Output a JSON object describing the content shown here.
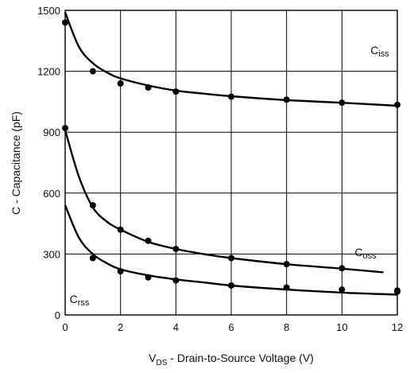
{
  "chart_data": {
    "type": "scatter",
    "title": "",
    "xlabel": {
      "prefix": "V",
      "sub": "DS",
      "rest": " - Drain-to-Source Voltage (V)"
    },
    "ylabel": "C - Capacitance (pF)",
    "xlim": [
      0,
      12
    ],
    "ylim": [
      0,
      1500
    ],
    "xticks": [
      0,
      2,
      4,
      6,
      8,
      10,
      12
    ],
    "yticks": [
      0,
      300,
      600,
      900,
      1200,
      1500
    ],
    "grid": true,
    "legend": "none",
    "series": [
      {
        "label": {
          "main": "C",
          "sub": "iss"
        },
        "points_x": [
          0,
          1,
          2,
          3,
          4,
          6,
          8,
          10,
          12
        ],
        "points_y": [
          1440,
          1200,
          1140,
          1120,
          1100,
          1075,
          1060,
          1045,
          1035
        ],
        "curve_x": [
          0,
          0.5,
          1,
          1.5,
          2,
          3,
          4,
          5,
          6,
          8,
          10,
          12
        ],
        "curve_y": [
          1490,
          1320,
          1240,
          1195,
          1165,
          1130,
          1105,
          1090,
          1077,
          1058,
          1045,
          1030
        ]
      },
      {
        "label": {
          "main": "C",
          "sub": "oss"
        },
        "points_x": [
          0,
          1,
          2,
          3,
          4,
          6,
          8,
          10,
          12
        ],
        "points_y": [
          920,
          540,
          420,
          365,
          325,
          280,
          250,
          230,
          120
        ],
        "curve_x": [
          0,
          0.5,
          1,
          1.5,
          2,
          3,
          4,
          5,
          6,
          8,
          10,
          11.5
        ],
        "curve_y": [
          910,
          680,
          530,
          460,
          420,
          360,
          325,
          300,
          280,
          250,
          228,
          210
        ]
      },
      {
        "label": {
          "main": "C",
          "sub": "rss"
        },
        "points_x": [
          1,
          2,
          3,
          4,
          6,
          8,
          10,
          12
        ],
        "points_y": [
          280,
          215,
          185,
          170,
          145,
          135,
          125,
          115
        ],
        "curve_x": [
          0,
          0.5,
          1,
          1.5,
          2,
          3,
          4,
          5,
          6,
          8,
          10,
          12
        ],
        "curve_y": [
          540,
          380,
          300,
          255,
          225,
          195,
          175,
          160,
          145,
          125,
          110,
          100
        ]
      }
    ]
  }
}
